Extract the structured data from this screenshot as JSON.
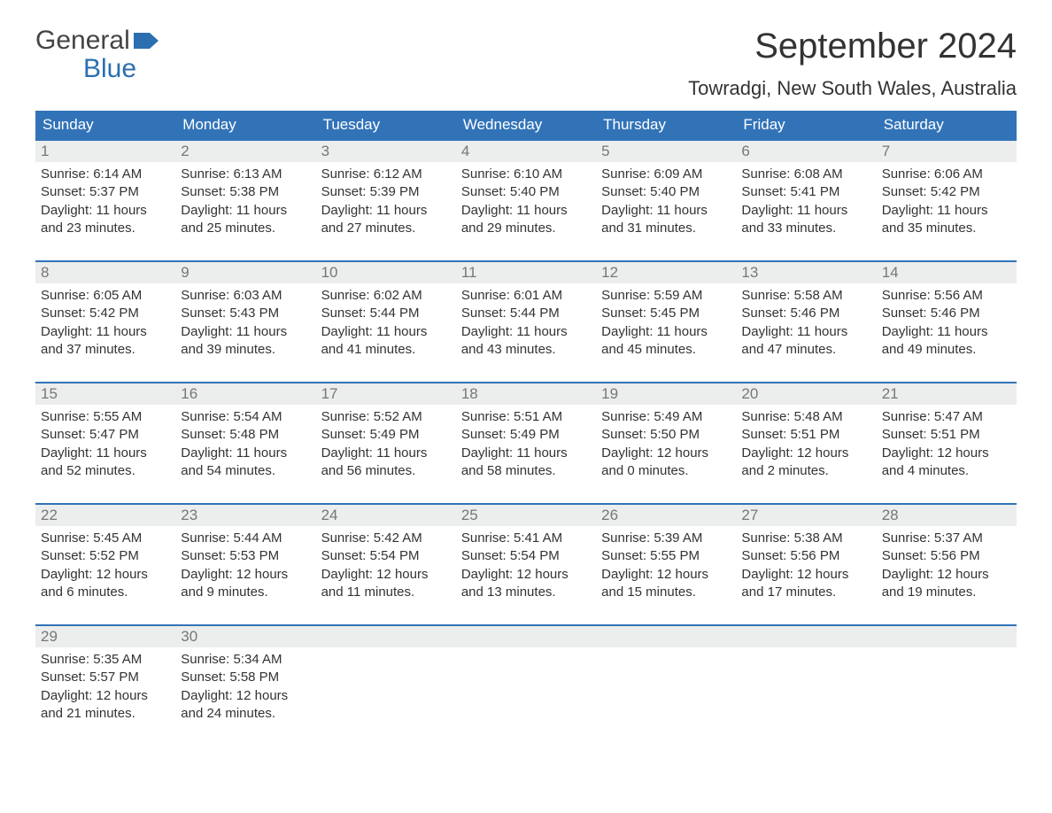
{
  "logo": {
    "line1": "General",
    "line2": "Blue"
  },
  "title": "September 2024",
  "location": "Towradgi, New South Wales, Australia",
  "colors": {
    "header_bg": "#3273b8",
    "header_text": "#ffffff",
    "daynum_bg": "#eceded",
    "daynum_text": "#777777",
    "week_border": "#3273b8",
    "body_text": "#333333",
    "logo_blue": "#2b6fb0",
    "logo_gray": "#444444",
    "page_bg": "#ffffff"
  },
  "typography": {
    "title_fontsize": 40,
    "location_fontsize": 22,
    "dow_fontsize": 17,
    "daynum_fontsize": 17,
    "detail_fontsize": 15,
    "logo_fontsize": 30
  },
  "days_of_week": [
    "Sunday",
    "Monday",
    "Tuesday",
    "Wednesday",
    "Thursday",
    "Friday",
    "Saturday"
  ],
  "weeks": [
    [
      {
        "n": "1",
        "sunrise": "Sunrise: 6:14 AM",
        "sunset": "Sunset: 5:37 PM",
        "daylight": "Daylight: 11 hours and 23 minutes."
      },
      {
        "n": "2",
        "sunrise": "Sunrise: 6:13 AM",
        "sunset": "Sunset: 5:38 PM",
        "daylight": "Daylight: 11 hours and 25 minutes."
      },
      {
        "n": "3",
        "sunrise": "Sunrise: 6:12 AM",
        "sunset": "Sunset: 5:39 PM",
        "daylight": "Daylight: 11 hours and 27 minutes."
      },
      {
        "n": "4",
        "sunrise": "Sunrise: 6:10 AM",
        "sunset": "Sunset: 5:40 PM",
        "daylight": "Daylight: 11 hours and 29 minutes."
      },
      {
        "n": "5",
        "sunrise": "Sunrise: 6:09 AM",
        "sunset": "Sunset: 5:40 PM",
        "daylight": "Daylight: 11 hours and 31 minutes."
      },
      {
        "n": "6",
        "sunrise": "Sunrise: 6:08 AM",
        "sunset": "Sunset: 5:41 PM",
        "daylight": "Daylight: 11 hours and 33 minutes."
      },
      {
        "n": "7",
        "sunrise": "Sunrise: 6:06 AM",
        "sunset": "Sunset: 5:42 PM",
        "daylight": "Daylight: 11 hours and 35 minutes."
      }
    ],
    [
      {
        "n": "8",
        "sunrise": "Sunrise: 6:05 AM",
        "sunset": "Sunset: 5:42 PM",
        "daylight": "Daylight: 11 hours and 37 minutes."
      },
      {
        "n": "9",
        "sunrise": "Sunrise: 6:03 AM",
        "sunset": "Sunset: 5:43 PM",
        "daylight": "Daylight: 11 hours and 39 minutes."
      },
      {
        "n": "10",
        "sunrise": "Sunrise: 6:02 AM",
        "sunset": "Sunset: 5:44 PM",
        "daylight": "Daylight: 11 hours and 41 minutes."
      },
      {
        "n": "11",
        "sunrise": "Sunrise: 6:01 AM",
        "sunset": "Sunset: 5:44 PM",
        "daylight": "Daylight: 11 hours and 43 minutes."
      },
      {
        "n": "12",
        "sunrise": "Sunrise: 5:59 AM",
        "sunset": "Sunset: 5:45 PM",
        "daylight": "Daylight: 11 hours and 45 minutes."
      },
      {
        "n": "13",
        "sunrise": "Sunrise: 5:58 AM",
        "sunset": "Sunset: 5:46 PM",
        "daylight": "Daylight: 11 hours and 47 minutes."
      },
      {
        "n": "14",
        "sunrise": "Sunrise: 5:56 AM",
        "sunset": "Sunset: 5:46 PM",
        "daylight": "Daylight: 11 hours and 49 minutes."
      }
    ],
    [
      {
        "n": "15",
        "sunrise": "Sunrise: 5:55 AM",
        "sunset": "Sunset: 5:47 PM",
        "daylight": "Daylight: 11 hours and 52 minutes."
      },
      {
        "n": "16",
        "sunrise": "Sunrise: 5:54 AM",
        "sunset": "Sunset: 5:48 PM",
        "daylight": "Daylight: 11 hours and 54 minutes."
      },
      {
        "n": "17",
        "sunrise": "Sunrise: 5:52 AM",
        "sunset": "Sunset: 5:49 PM",
        "daylight": "Daylight: 11 hours and 56 minutes."
      },
      {
        "n": "18",
        "sunrise": "Sunrise: 5:51 AM",
        "sunset": "Sunset: 5:49 PM",
        "daylight": "Daylight: 11 hours and 58 minutes."
      },
      {
        "n": "19",
        "sunrise": "Sunrise: 5:49 AM",
        "sunset": "Sunset: 5:50 PM",
        "daylight": "Daylight: 12 hours and 0 minutes."
      },
      {
        "n": "20",
        "sunrise": "Sunrise: 5:48 AM",
        "sunset": "Sunset: 5:51 PM",
        "daylight": "Daylight: 12 hours and 2 minutes."
      },
      {
        "n": "21",
        "sunrise": "Sunrise: 5:47 AM",
        "sunset": "Sunset: 5:51 PM",
        "daylight": "Daylight: 12 hours and 4 minutes."
      }
    ],
    [
      {
        "n": "22",
        "sunrise": "Sunrise: 5:45 AM",
        "sunset": "Sunset: 5:52 PM",
        "daylight": "Daylight: 12 hours and 6 minutes."
      },
      {
        "n": "23",
        "sunrise": "Sunrise: 5:44 AM",
        "sunset": "Sunset: 5:53 PM",
        "daylight": "Daylight: 12 hours and 9 minutes."
      },
      {
        "n": "24",
        "sunrise": "Sunrise: 5:42 AM",
        "sunset": "Sunset: 5:54 PM",
        "daylight": "Daylight: 12 hours and 11 minutes."
      },
      {
        "n": "25",
        "sunrise": "Sunrise: 5:41 AM",
        "sunset": "Sunset: 5:54 PM",
        "daylight": "Daylight: 12 hours and 13 minutes."
      },
      {
        "n": "26",
        "sunrise": "Sunrise: 5:39 AM",
        "sunset": "Sunset: 5:55 PM",
        "daylight": "Daylight: 12 hours and 15 minutes."
      },
      {
        "n": "27",
        "sunrise": "Sunrise: 5:38 AM",
        "sunset": "Sunset: 5:56 PM",
        "daylight": "Daylight: 12 hours and 17 minutes."
      },
      {
        "n": "28",
        "sunrise": "Sunrise: 5:37 AM",
        "sunset": "Sunset: 5:56 PM",
        "daylight": "Daylight: 12 hours and 19 minutes."
      }
    ],
    [
      {
        "n": "29",
        "sunrise": "Sunrise: 5:35 AM",
        "sunset": "Sunset: 5:57 PM",
        "daylight": "Daylight: 12 hours and 21 minutes."
      },
      {
        "n": "30",
        "sunrise": "Sunrise: 5:34 AM",
        "sunset": "Sunset: 5:58 PM",
        "daylight": "Daylight: 12 hours and 24 minutes."
      },
      null,
      null,
      null,
      null,
      null
    ]
  ]
}
